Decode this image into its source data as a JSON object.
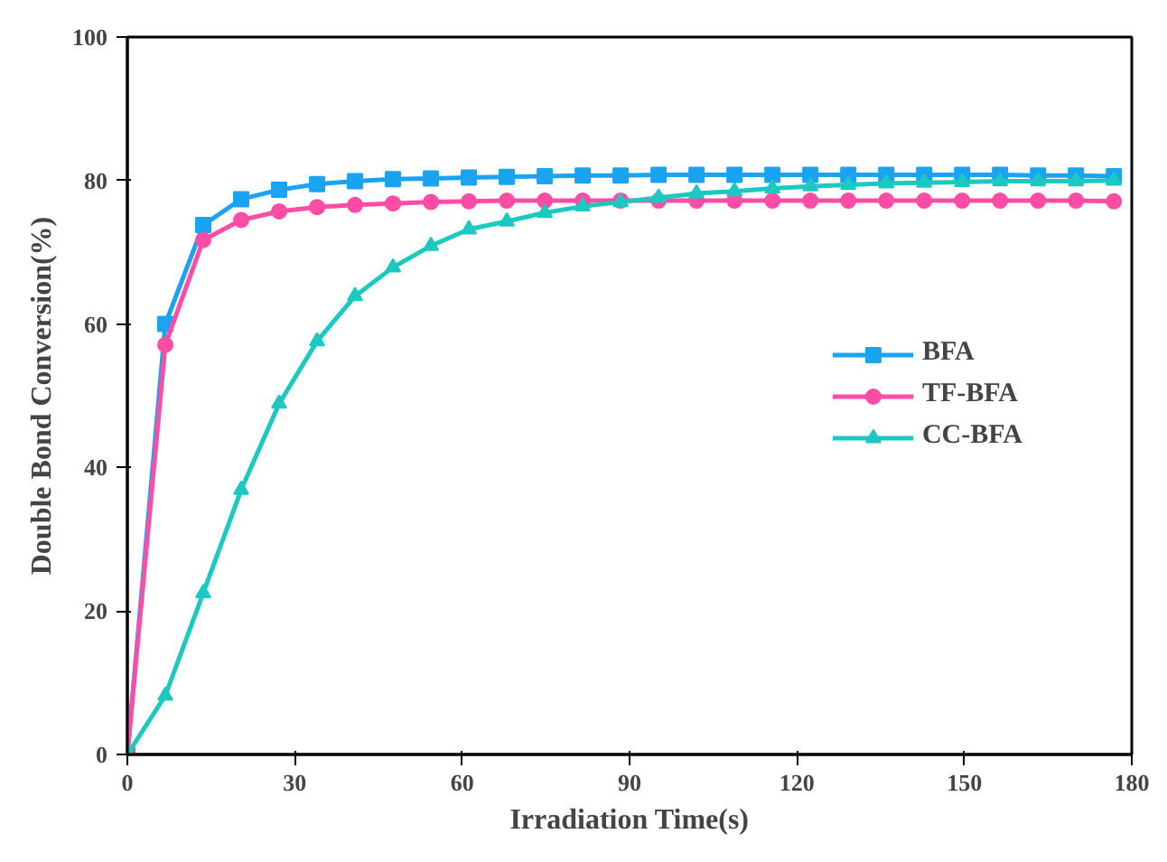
{
  "chart_data": {
    "type": "line",
    "xlabel": "Irradiation Time(s)",
    "ylabel": "Double Bond Conversion(%)",
    "x": [
      0,
      6.8,
      13.6,
      20.4,
      27.2,
      34,
      40.8,
      47.6,
      54.4,
      61.2,
      68,
      74.8,
      81.6,
      88.4,
      95.2,
      102,
      108.8,
      115.6,
      122.4,
      129.2,
      136,
      142.8,
      149.6,
      156.4,
      163.2,
      170,
      176.8
    ],
    "series": [
      {
        "name": "BFA",
        "color": "#1aa3f0",
        "marker": "square",
        "values": [
          0,
          60,
          73.8,
          77.4,
          78.7,
          79.5,
          79.9,
          80.2,
          80.3,
          80.4,
          80.5,
          80.6,
          80.7,
          80.7,
          80.8,
          80.8,
          80.8,
          80.8,
          80.8,
          80.8,
          80.8,
          80.8,
          80.8,
          80.8,
          80.7,
          80.7,
          80.6
        ]
      },
      {
        "name": "TF-BFA",
        "color": "#ff4da6",
        "marker": "circle",
        "values": [
          0,
          57.1,
          71.7,
          74.5,
          75.7,
          76.3,
          76.6,
          76.8,
          77,
          77.1,
          77.2,
          77.2,
          77.2,
          77.2,
          77.2,
          77.2,
          77.2,
          77.2,
          77.2,
          77.2,
          77.2,
          77.2,
          77.2,
          77.2,
          77.2,
          77.2,
          77.1
        ]
      },
      {
        "name": "CC-BFA",
        "color": "#1cc8c0",
        "marker": "triangle",
        "values": [
          0,
          8.2,
          22.5,
          36.9,
          48.9,
          57.6,
          63.9,
          67.9,
          70.9,
          73.2,
          74.3,
          75.5,
          76.4,
          77,
          77.6,
          78.2,
          78.5,
          78.9,
          79.2,
          79.4,
          79.6,
          79.7,
          79.8,
          79.9,
          79.9,
          79.9,
          80
        ]
      }
    ],
    "xlim": [
      0,
      180
    ],
    "xticks": [
      0,
      30,
      60,
      90,
      120,
      150,
      180
    ],
    "ylim": [
      0,
      100
    ],
    "yticks": [
      0,
      20,
      40,
      60,
      80,
      100
    ],
    "grid": false,
    "legend": "right",
    "line_style": "solid"
  }
}
